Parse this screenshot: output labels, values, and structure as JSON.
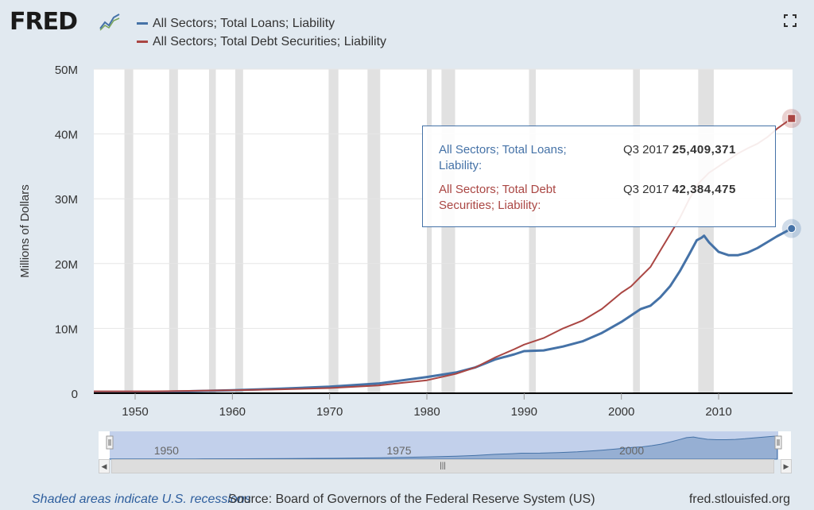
{
  "logo": {
    "text": "FRED",
    "icon": "trend-line-icon"
  },
  "legend": [
    {
      "name": "All Sectors; Total Loans; Liability",
      "color": "#4572a7"
    },
    {
      "name": "All Sectors; Total Debt Securities; Liability",
      "color": "#aa4643"
    }
  ],
  "fullscreen_icon": "fullscreen-icon",
  "chart_data": {
    "type": "line",
    "ylabel": "Millions of Dollars",
    "xlim": [
      1945.75,
      2017.6
    ],
    "ylim": [
      0,
      50000000
    ],
    "x_ticks": [
      1950,
      1960,
      1970,
      1980,
      1990,
      2000,
      2010
    ],
    "y_ticks": [
      {
        "value": 0,
        "label": "0"
      },
      {
        "value": 10000000,
        "label": "10M"
      },
      {
        "value": 20000000,
        "label": "20M"
      },
      {
        "value": 30000000,
        "label": "30M"
      },
      {
        "value": 40000000,
        "label": "40M"
      },
      {
        "value": 50000000,
        "label": "50M"
      }
    ],
    "recessions": [
      [
        1948.9,
        1949.8
      ],
      [
        1953.5,
        1954.4
      ],
      [
        1957.6,
        1958.3
      ],
      [
        1960.3,
        1961.1
      ],
      [
        1969.9,
        1970.9
      ],
      [
        1973.9,
        1975.2
      ],
      [
        1980.0,
        1980.5
      ],
      [
        1981.5,
        1982.9
      ],
      [
        1990.5,
        1991.2
      ],
      [
        2001.2,
        2001.9
      ],
      [
        2007.9,
        2009.5
      ]
    ],
    "series": [
      {
        "name": "All Sectors; Total Loans; Liability",
        "color": "#4572a7",
        "points": [
          [
            1945.75,
            200000
          ],
          [
            1947.0,
            200000
          ],
          [
            1952.0,
            200000
          ],
          [
            1955.0,
            300000
          ],
          [
            1960.0,
            450000
          ],
          [
            1965.0,
            700000
          ],
          [
            1970.0,
            1000000
          ],
          [
            1975.0,
            1500000
          ],
          [
            1980.0,
            2500000
          ],
          [
            1983.0,
            3200000
          ],
          [
            1985.0,
            4000000
          ],
          [
            1987.0,
            5200000
          ],
          [
            1989.0,
            6000000
          ],
          [
            1990.0,
            6500000
          ],
          [
            1992.0,
            6600000
          ],
          [
            1994.0,
            7200000
          ],
          [
            1996.0,
            8000000
          ],
          [
            1998.0,
            9300000
          ],
          [
            2000.0,
            11000000
          ],
          [
            2001.0,
            12000000
          ],
          [
            2002.0,
            13000000
          ],
          [
            2003.0,
            13500000
          ],
          [
            2004.0,
            14800000
          ],
          [
            2005.0,
            16500000
          ],
          [
            2006.0,
            18800000
          ],
          [
            2007.0,
            21500000
          ],
          [
            2007.75,
            23600000
          ],
          [
            2008.25,
            24000000
          ],
          [
            2008.5,
            24300000
          ],
          [
            2009.0,
            23300000
          ],
          [
            2010.0,
            21800000
          ],
          [
            2011.0,
            21300000
          ],
          [
            2012.0,
            21300000
          ],
          [
            2013.0,
            21700000
          ],
          [
            2014.0,
            22400000
          ],
          [
            2015.0,
            23300000
          ],
          [
            2016.0,
            24200000
          ],
          [
            2017.5,
            25409371
          ]
        ]
      },
      {
        "name": "All Sectors; Total Debt Securities; Liability",
        "color": "#aa4643",
        "points": [
          [
            1945.75,
            300000
          ],
          [
            1946.75,
            300000
          ],
          [
            1952.0,
            300000
          ],
          [
            1955.0,
            350000
          ],
          [
            1960.0,
            450000
          ],
          [
            1965.0,
            600000
          ],
          [
            1970.0,
            800000
          ],
          [
            1975.0,
            1200000
          ],
          [
            1980.0,
            2000000
          ],
          [
            1983.0,
            3000000
          ],
          [
            1985.0,
            4000000
          ],
          [
            1987.0,
            5500000
          ],
          [
            1989.0,
            6800000
          ],
          [
            1990.0,
            7500000
          ],
          [
            1992.0,
            8500000
          ],
          [
            1994.0,
            10000000
          ],
          [
            1996.0,
            11200000
          ],
          [
            1998.0,
            13000000
          ],
          [
            2000.0,
            15500000
          ],
          [
            2001.0,
            16500000
          ],
          [
            2002.0,
            18000000
          ],
          [
            2003.0,
            19500000
          ],
          [
            2004.0,
            22000000
          ],
          [
            2005.0,
            24500000
          ],
          [
            2006.0,
            27000000
          ],
          [
            2007.0,
            30000000
          ],
          [
            2008.0,
            32500000
          ],
          [
            2009.0,
            34000000
          ],
          [
            2010.0,
            35000000
          ],
          [
            2011.0,
            36000000
          ],
          [
            2012.0,
            37000000
          ],
          [
            2013.0,
            37800000
          ],
          [
            2014.0,
            38500000
          ],
          [
            2015.0,
            39500000
          ],
          [
            2016.0,
            40800000
          ],
          [
            2017.5,
            42384475
          ]
        ]
      }
    ],
    "navigator": {
      "labels": [
        1950,
        1975,
        2000
      ]
    }
  },
  "tooltip": {
    "rows": [
      {
        "name": "All Sectors; Total Loans; Liability:",
        "date": "Q3 2017",
        "value": "25,409,371",
        "color": "#4572a7"
      },
      {
        "name": "All Sectors; Total Debt Securities; Liability:",
        "date": "Q3 2017",
        "value": "42,384,475",
        "color": "#aa4643"
      }
    ]
  },
  "footer": {
    "note": "Shaded areas indicate U.S. recessions",
    "source": "Source: Board of Governors of the Federal Reserve System (US)",
    "url": "fred.stlouisfed.org"
  }
}
